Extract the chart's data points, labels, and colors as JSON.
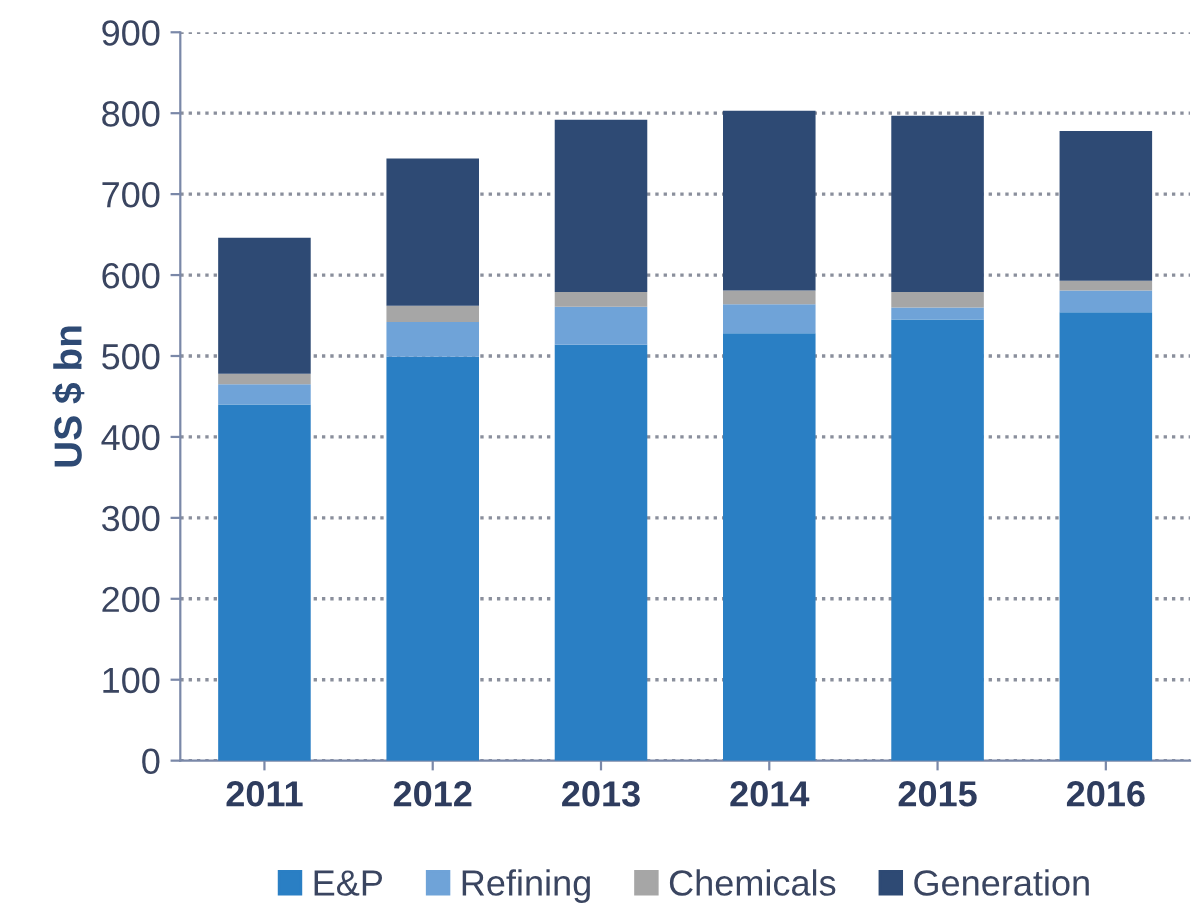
{
  "chart_data": {
    "type": "bar",
    "stacked": true,
    "ylabel": "US $ bn",
    "categories": [
      "2011",
      "2012",
      "2013",
      "2014",
      "2015",
      "2016"
    ],
    "series": [
      {
        "name": "E&P",
        "color": "#2a7fc4",
        "values": [
          440,
          499,
          514,
          528,
          545,
          554
        ]
      },
      {
        "name": "Refining",
        "color": "#6fa3d8",
        "values": [
          25,
          43,
          47,
          36,
          15,
          27
        ]
      },
      {
        "name": "Chemicals",
        "color": "#a6a6a6",
        "values": [
          13,
          20,
          18,
          17,
          19,
          12
        ]
      },
      {
        "name": "Generation",
        "color": "#2e4a74",
        "values": [
          168,
          182,
          213,
          222,
          218,
          185
        ]
      }
    ],
    "ylim": [
      0,
      900
    ],
    "yticks": [
      0,
      100,
      200,
      300,
      400,
      500,
      600,
      700,
      800,
      900
    ],
    "grid": "y",
    "legend": "bottom"
  }
}
